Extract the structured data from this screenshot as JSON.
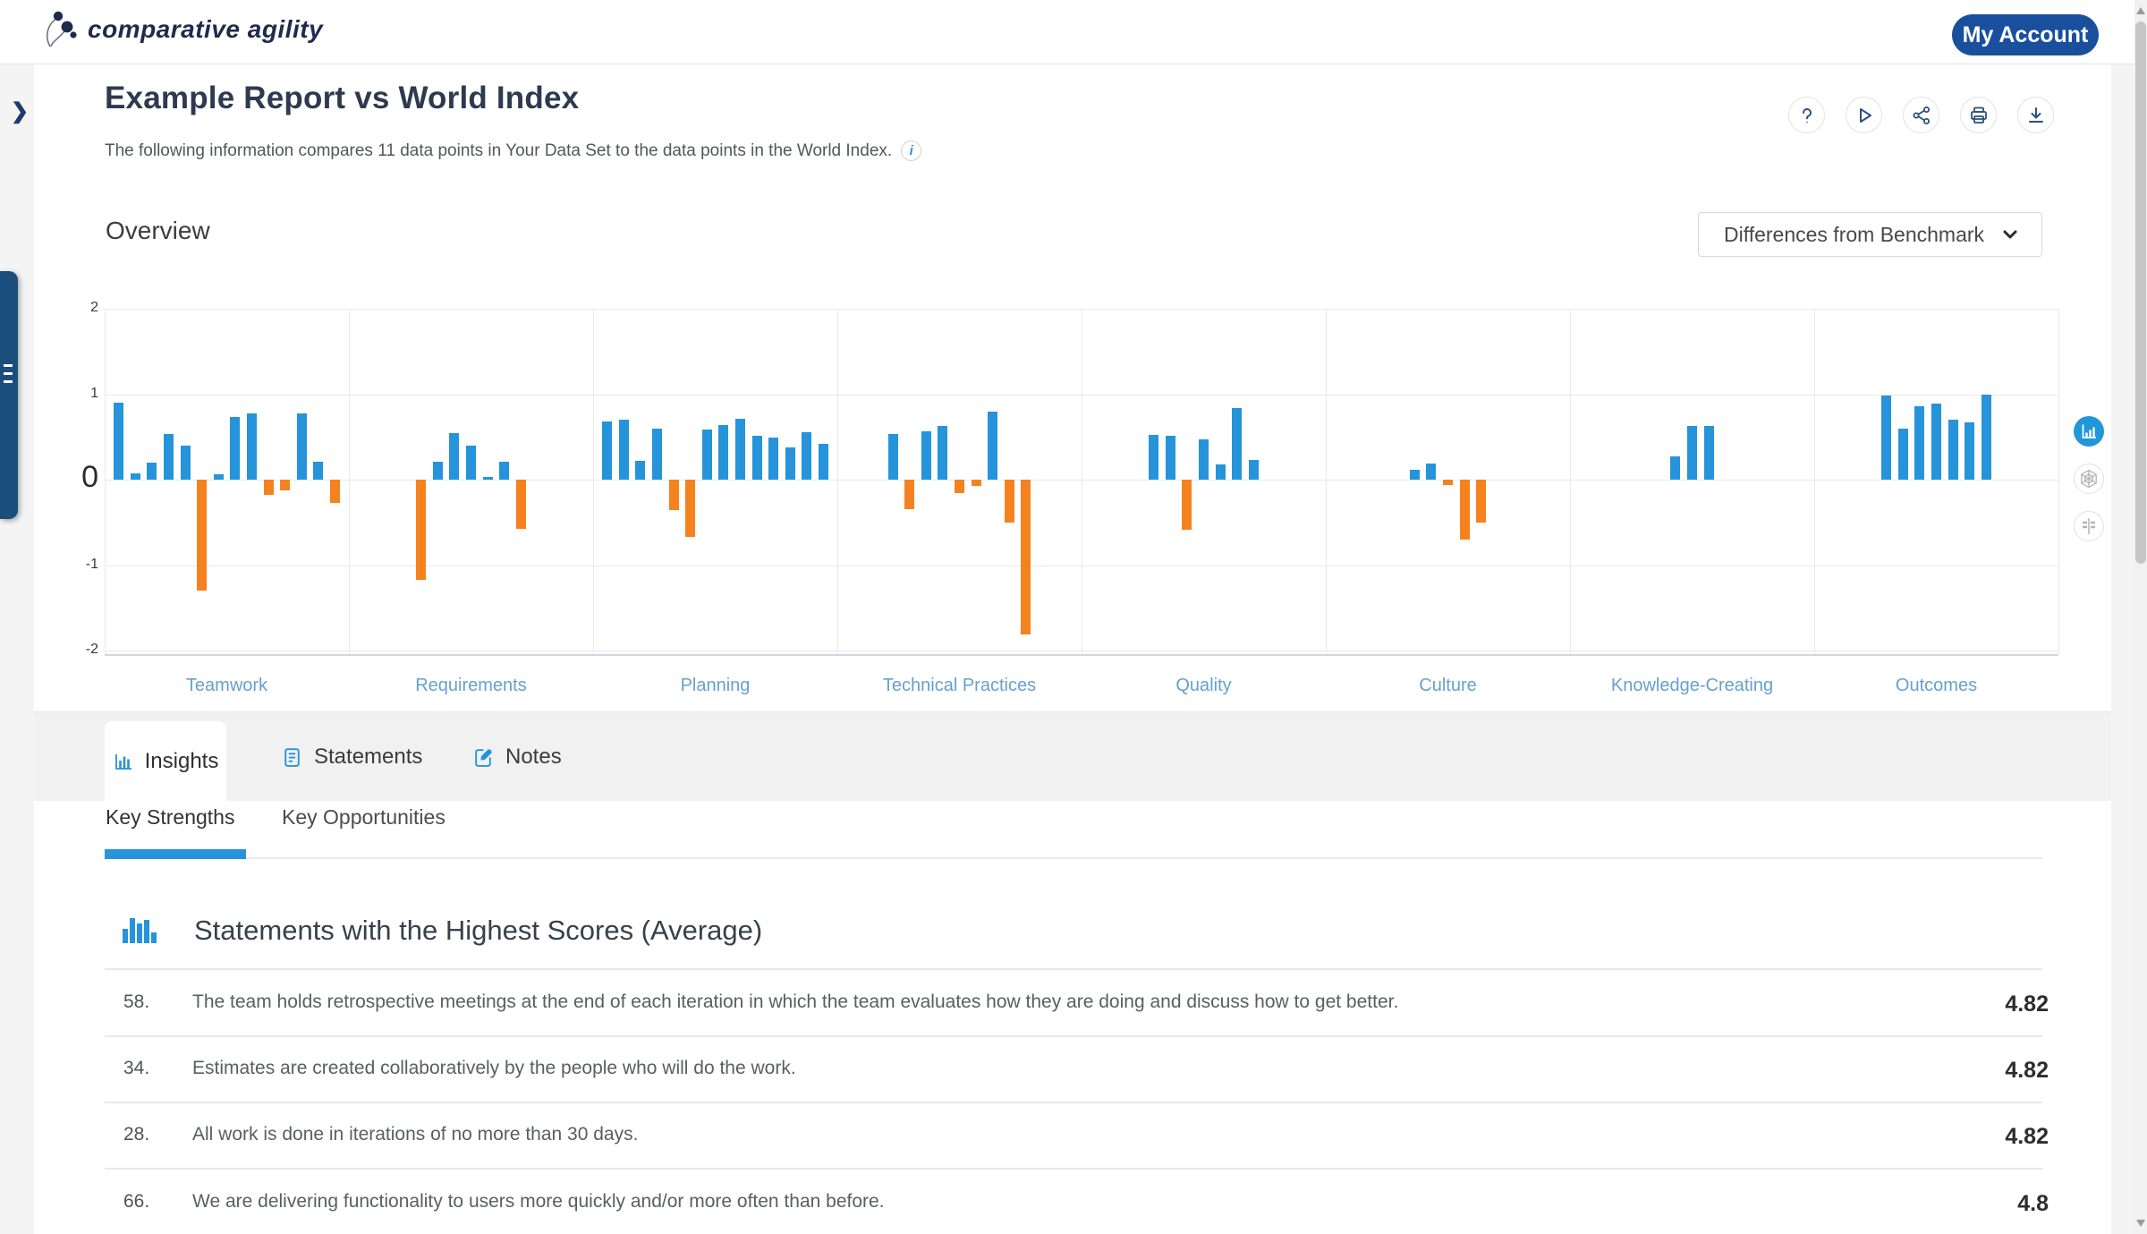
{
  "header": {
    "logo_text": "comparative agility",
    "account_button_label": "My Account"
  },
  "report": {
    "title": "Example Report vs World Index",
    "subtitle": "The following information compares 11 data points in Your Data Set to the data points in the World Index.",
    "section_label": "Overview",
    "benchmark_dropdown": {
      "selected": "Differences from Benchmark"
    }
  },
  "chart_data": {
    "type": "bar",
    "title": "Differences from Benchmark by dimension",
    "categories": [
      "Teamwork",
      "Requirements",
      "Planning",
      "Technical Practices",
      "Quality",
      "Culture",
      "Knowledge-Creating",
      "Outcomes"
    ],
    "series": [
      {
        "name": "Teamwork",
        "values": [
          0.9,
          0.07,
          0.2,
          0.53,
          0.4,
          -1.3,
          0.06,
          0.73,
          0.77,
          -0.18,
          -0.13,
          0.77,
          0.21,
          -0.27
        ]
      },
      {
        "name": "Requirements",
        "values": [
          -1.17,
          0.21,
          0.54,
          0.4,
          0.03,
          0.21,
          -0.58
        ]
      },
      {
        "name": "Planning",
        "values": [
          0.68,
          0.7,
          0.22,
          0.6,
          -0.36,
          -0.67,
          0.59,
          0.64,
          0.71,
          0.51,
          0.49,
          0.38,
          0.56,
          0.42
        ]
      },
      {
        "name": "Technical Practices",
        "values": [
          0.53,
          -0.35,
          0.57,
          0.63,
          -0.16,
          -0.07,
          0.8,
          -0.5,
          -1.81
        ]
      },
      {
        "name": "Quality",
        "values": [
          0.52,
          0.51,
          -0.59,
          0.47,
          0.18,
          0.84,
          0.23
        ]
      },
      {
        "name": "Culture",
        "values": [
          0.11,
          0.19,
          -0.06,
          -0.7,
          -0.5
        ]
      },
      {
        "name": "Knowledge-Creating",
        "values": [
          0.27,
          0.63,
          0.63
        ]
      },
      {
        "name": "Outcomes",
        "values": [
          0.98,
          0.6,
          0.86,
          0.89,
          0.7,
          0.67,
          1.0
        ]
      }
    ],
    "ylim": [
      -2,
      2
    ],
    "yticks": [
      2,
      1,
      0,
      -1,
      -2
    ],
    "ytick_labels": [
      "2",
      "1",
      "0",
      "-1",
      "-2"
    ],
    "grid": true,
    "legend": false,
    "bar_positive_color": "#2594da",
    "bar_negative_color": "#f5821e"
  },
  "tabs": {
    "items": [
      {
        "label": "Insights",
        "active": true
      },
      {
        "label": "Statements",
        "active": false
      },
      {
        "label": "Notes",
        "active": false
      }
    ]
  },
  "subtabs": {
    "items": [
      {
        "label": "Key Strengths",
        "active": true
      },
      {
        "label": "Key Opportunities",
        "active": false
      }
    ]
  },
  "insights": {
    "heading": "Statements with the Highest Scores (Average)",
    "rows": [
      {
        "num": "58.",
        "text": "The team holds retrospective meetings at the end of each iteration in which the team evaluates how they are doing and discuss how to get better.",
        "score": "4.82"
      },
      {
        "num": "34.",
        "text": "Estimates are created collaboratively by the people who will do the work.",
        "score": "4.82"
      },
      {
        "num": "28.",
        "text": "All work is done in iterations of no more than 30 days.",
        "score": "4.82"
      },
      {
        "num": "66.",
        "text": "We are delivering functionality to users more quickly and/or more often than before.",
        "score": "4.8"
      }
    ]
  }
}
